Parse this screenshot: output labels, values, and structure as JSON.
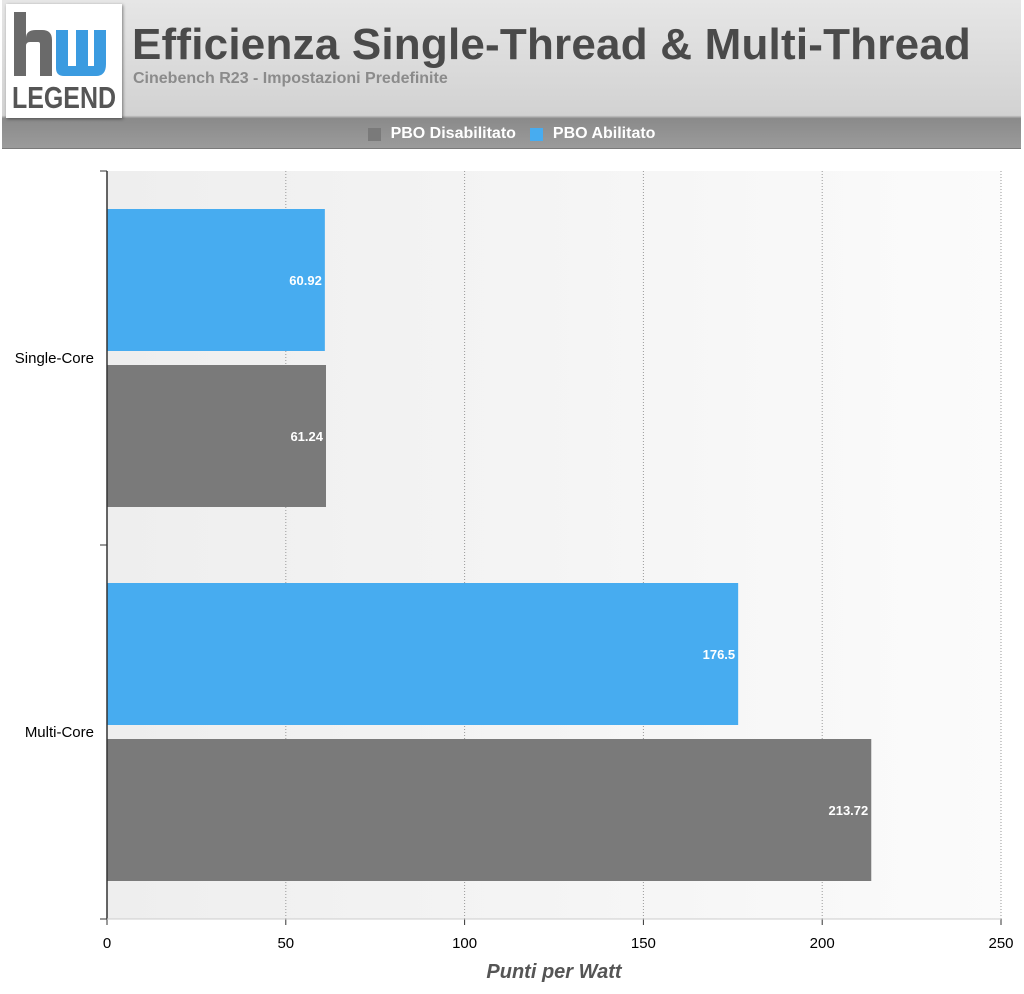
{
  "header": {
    "logo_text": "hw LEGEND",
    "title": "Efficienza Single-Thread & Multi-Thread",
    "subtitle": "Cinebench R23 - Impostazioni Predefinite"
  },
  "colors": {
    "pbo_off": "#7a7a7a",
    "pbo_on": "#47acf0"
  },
  "chart_data": {
    "type": "bar",
    "orientation": "horizontal",
    "categories": [
      "Single-Core",
      "Multi-Core"
    ],
    "series": [
      {
        "name": "PBO Disabilitato",
        "values": [
          61.24,
          213.72
        ]
      },
      {
        "name": "PBO Abilitato",
        "values": [
          60.92,
          176.5
        ]
      }
    ],
    "title": "Efficienza Single-Thread & Multi-Thread",
    "subtitle": "Cinebench R23 - Impostazioni Predefinite",
    "xlabel": "Punti per Watt",
    "ylabel": "",
    "xlim": [
      0,
      250
    ],
    "xticks": [
      0,
      50,
      100,
      150,
      200,
      250
    ],
    "grid": "vertical dotted",
    "legend": "top-center",
    "data_labels": [
      "60.92",
      "61.24",
      "176.5",
      "213.72"
    ]
  }
}
